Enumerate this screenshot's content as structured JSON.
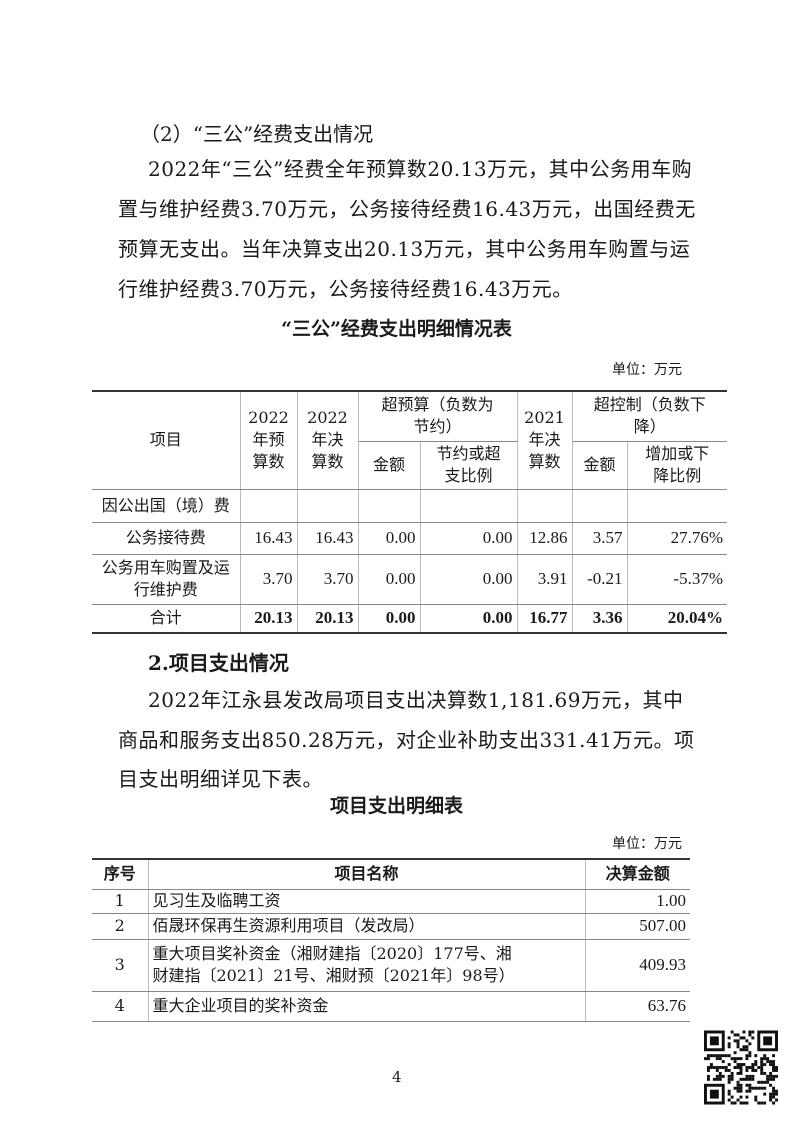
{
  "section2": {
    "heading": "（2）“三公”经费支出情况",
    "lines": [
      "2022年“三公”经费全年预算数20.13万元，其中公务用车购",
      "置与维护经费3.70万元，公务接待经费16.43万元，出国经费无",
      "预算无支出。当年决算支出20.13万元，其中公务用车购置与运",
      "行维护经费3.70万元，公务接待经费16.43万元。"
    ]
  },
  "table1": {
    "title": "“三公”经费支出明细情况表",
    "unit": "单位：万元",
    "headers": {
      "item": "项目",
      "budget": [
        "2022",
        "年预",
        "算数"
      ],
      "final": [
        "2022",
        "年决",
        "算数"
      ],
      "over_budget": [
        "超预算（负数为",
        "节约）"
      ],
      "over_amount": "金额",
      "over_ratio": [
        "节约或超",
        "支比例"
      ],
      "prev_final": [
        "2021",
        "年决",
        "算数"
      ],
      "over_control": [
        "超控制（负数下",
        "降）"
      ],
      "ctrl_amount": "金额",
      "ctrl_ratio": [
        "增加或下",
        "降比例"
      ]
    },
    "rows": [
      {
        "item": [
          "因公出国（境）费"
        ],
        "values": [
          "",
          "",
          "",
          "",
          "",
          "",
          ""
        ]
      },
      {
        "item": [
          "公务接待费"
        ],
        "values": [
          "16.43",
          "16.43",
          "0.00",
          "0.00",
          "12.86",
          "3.57",
          "27.76%"
        ]
      },
      {
        "item": [
          "公务用车购置及运",
          "行维护费"
        ],
        "values": [
          "3.70",
          "3.70",
          "0.00",
          "0.00",
          "3.91",
          "-0.21",
          "-5.37%"
        ]
      },
      {
        "item": [
          "合计"
        ],
        "values": [
          "20.13",
          "20.13",
          "0.00",
          "0.00",
          "16.77",
          "3.36",
          "20.04%"
        ]
      }
    ]
  },
  "section_project": {
    "heading": "2.项目支出情况",
    "lines": [
      "2022年江永县发改局项目支出决算数1,181.69万元，其中",
      "商品和服务支出850.28万元，对企业补助支出331.41万元。项",
      "目支出明细详见下表。"
    ]
  },
  "table2": {
    "title": "项目支出明细表",
    "unit": "单位：万元",
    "headers": [
      "序号",
      "项目名称",
      "决算金额"
    ],
    "rows": [
      {
        "no": "1",
        "name": [
          "见习生及临聘工资"
        ],
        "amount": "1.00"
      },
      {
        "no": "2",
        "name": [
          "佰晟环保再生资源利用项目（发改局）"
        ],
        "amount": "507.00"
      },
      {
        "no": "3",
        "name": [
          "重大项目奖补资金（湘财建指〔2020〕177号、湘",
          "财建指〔2021〕21号、湘财预〔2021年〕98号）"
        ],
        "amount": "409.93"
      },
      {
        "no": "4",
        "name": [
          "重大企业项目的奖补资金"
        ],
        "amount": "63.76"
      }
    ]
  },
  "page_number": "4",
  "qr_code": "qr-code-icon"
}
